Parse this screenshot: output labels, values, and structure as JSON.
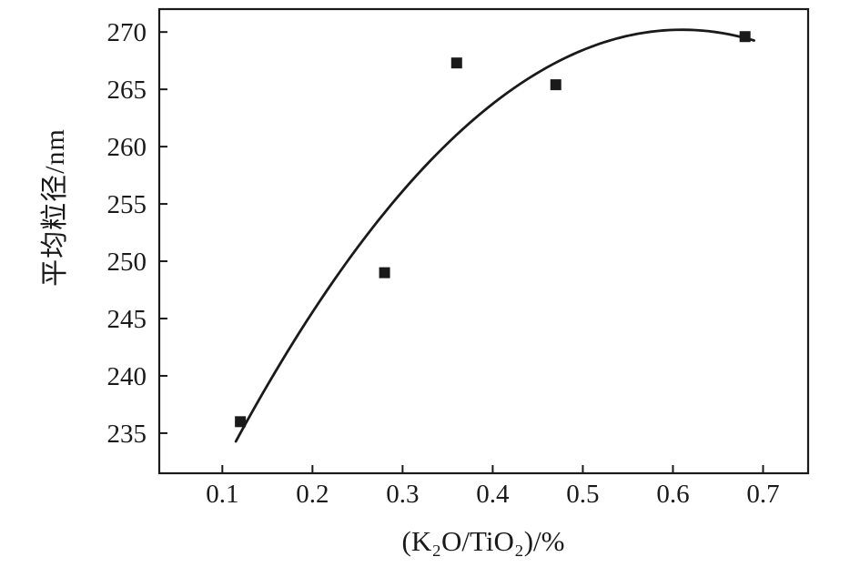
{
  "chart_data": {
    "type": "scatter",
    "title": "",
    "xlabel": "(K₂O/TiO₂)/%",
    "ylabel": "平均粒径/nm",
    "points": [
      {
        "x": 0.12,
        "y": 236.0
      },
      {
        "x": 0.28,
        "y": 249.0
      },
      {
        "x": 0.36,
        "y": 267.3
      },
      {
        "x": 0.47,
        "y": 265.4
      },
      {
        "x": 0.68,
        "y": 269.6
      }
    ],
    "fit_curve": {
      "shape": "quadratic",
      "vertex_x": 0.61,
      "vertex_y": 270.2,
      "coefficient": -146.6,
      "x_start": 0.115,
      "x_end": 0.69
    },
    "x_ticks": [
      0.1,
      0.2,
      0.3,
      0.4,
      0.5,
      0.6,
      0.7
    ],
    "y_ticks": [
      235,
      240,
      245,
      250,
      255,
      260,
      265,
      270
    ],
    "xlim": [
      0.03,
      0.75
    ],
    "ylim": [
      231.5,
      272.0
    ],
    "grid": false,
    "legend": "none",
    "marker": "square",
    "colors": {
      "line": "#1a1a1a",
      "marker": "#1a1a1a",
      "frame": "#1a1a1a",
      "background": "#ffffff",
      "text": "#1a1a1a"
    }
  }
}
